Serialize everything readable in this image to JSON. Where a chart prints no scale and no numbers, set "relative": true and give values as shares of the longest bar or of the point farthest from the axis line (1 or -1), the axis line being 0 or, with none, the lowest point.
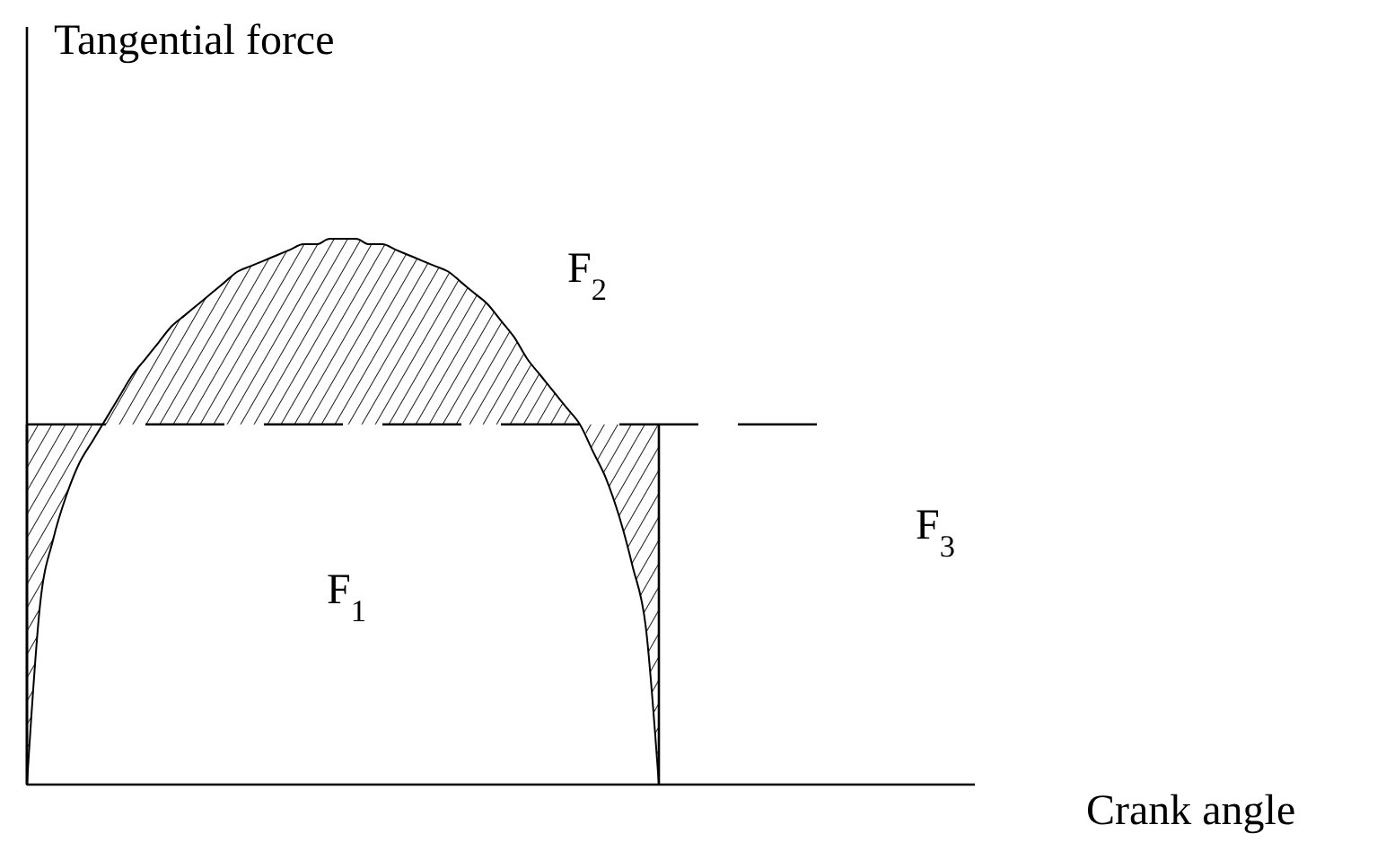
{
  "chart_data": {
    "type": "line",
    "relative": true,
    "ylabel": "Tangential force",
    "xlabel": "Crank angle",
    "categories": [
      null,
      null,
      null,
      null,
      null,
      null,
      null,
      null,
      null,
      null,
      null,
      null,
      null,
      null,
      null,
      null,
      null,
      null,
      null,
      null,
      null,
      null,
      null,
      null,
      null,
      null,
      null,
      null,
      null,
      null,
      null,
      null,
      null,
      null,
      null,
      null,
      null,
      null,
      null,
      null,
      null,
      null,
      null,
      null,
      null,
      null,
      null,
      null,
      null,
      null,
      null,
      null,
      null,
      null,
      null,
      null,
      null,
      null,
      null,
      null,
      null,
      null,
      null,
      null,
      null,
      null,
      null,
      null,
      null,
      null,
      null,
      null,
      null
    ],
    "series": [
      {
        "color": "#000000",
        "values": [
          0,
          0.33,
          0.45,
          0.53,
          0.59,
          0.63,
          0.67,
          0.71,
          0.75,
          0.78,
          0.81,
          0.84,
          0.86,
          0.88,
          0.9,
          0.92,
          0.94,
          0.95,
          0.96,
          0.97,
          0.98,
          0.99,
          0.99,
          1,
          1,
          1,
          0.99,
          0.99,
          0.98,
          0.97,
          0.96,
          0.95,
          0.94,
          0.92,
          0.9,
          0.88,
          0.85,
          0.82,
          0.78,
          0.75,
          0.72,
          0.69,
          0.66,
          0.61,
          0.56,
          0.49,
          0.4,
          0.29,
          0,
          null,
          null,
          null,
          null,
          null,
          null,
          null,
          null,
          null,
          null,
          null,
          null,
          null,
          null,
          null,
          null,
          null,
          null,
          null,
          null,
          null,
          null,
          null,
          null
        ],
        "lower": [
          0,
          0.33,
          0.45,
          0.53,
          0.59,
          0.63,
          0.66,
          0.66,
          0.66,
          0.66,
          0.66,
          0.66,
          0.66,
          0.66,
          0.66,
          0.66,
          0.66,
          0.66,
          0.66,
          0.66,
          0.66,
          0.66,
          0.66,
          0.66,
          0.66,
          0.66,
          0.66,
          0.66,
          0.66,
          0.66,
          0.66,
          0.66,
          0.66,
          0.66,
          0.66,
          0.66,
          0.66,
          0.66,
          0.66,
          0.66,
          0.66,
          0.66,
          0.66,
          0.61,
          0.56,
          0.49,
          0.4,
          0.29,
          0,
          null,
          null,
          null,
          null,
          null,
          null,
          null,
          null,
          null,
          null,
          null,
          null,
          null,
          null,
          null,
          null,
          null,
          null,
          null,
          null,
          null,
          null,
          null,
          null
        ],
        "upper": [
          0.66,
          0.66,
          0.66,
          0.66,
          0.66,
          0.66,
          0.67,
          0.71,
          0.75,
          0.78,
          0.81,
          0.84,
          0.86,
          0.88,
          0.9,
          0.92,
          0.94,
          0.95,
          0.96,
          0.97,
          0.98,
          0.99,
          0.99,
          1,
          1,
          1,
          0.99,
          0.99,
          0.98,
          0.97,
          0.96,
          0.95,
          0.94,
          0.92,
          0.9,
          0.88,
          0.85,
          0.82,
          0.78,
          0.75,
          0.72,
          0.69,
          0.66,
          0.66,
          0.66,
          0.66,
          0.66,
          0.66,
          0.66,
          null,
          null,
          null,
          null,
          null,
          null,
          null,
          null,
          null,
          null,
          null,
          null,
          null,
          null,
          null,
          null,
          null,
          null,
          null,
          null,
          null,
          null,
          null,
          null
        ]
      }
    ],
    "ref_lines": [
      {
        "axis": "y",
        "value": 0.66,
        "line_style": "dashed",
        "color": "#000000"
      }
    ],
    "annotations": [
      "F$_{1}$",
      "F$_{2}$",
      "F$_{3}$"
    ]
  }
}
